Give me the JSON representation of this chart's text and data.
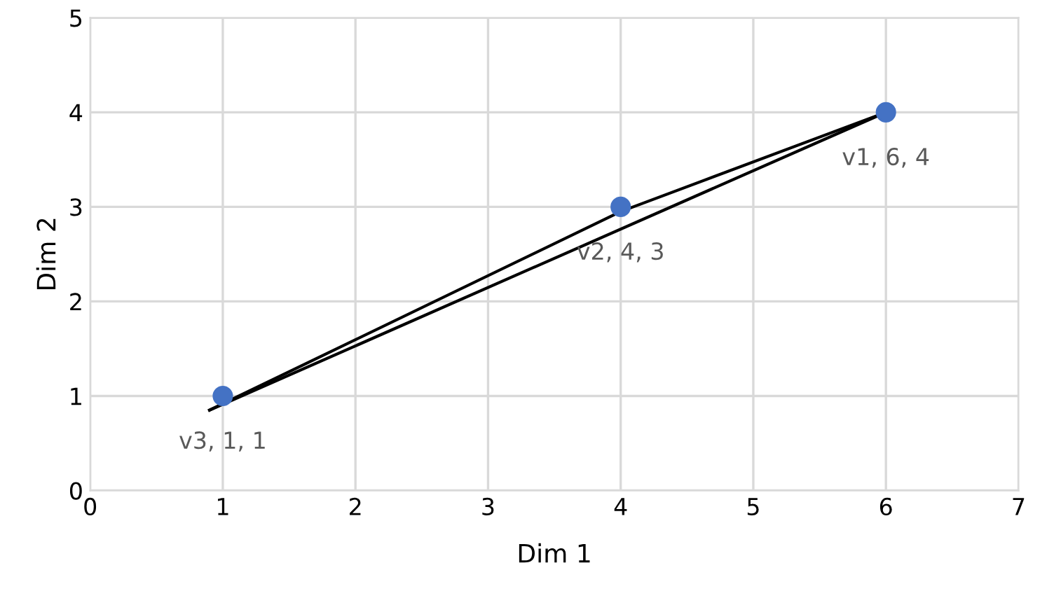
{
  "chart_data": {
    "type": "scatter",
    "xlabel": "Dim 1",
    "ylabel": "Dim 2",
    "xlim": [
      0,
      7
    ],
    "ylim": [
      0,
      5
    ],
    "xticks": [
      0,
      1,
      2,
      3,
      4,
      5,
      6,
      7
    ],
    "yticks": [
      0,
      1,
      2,
      3,
      4,
      5
    ],
    "grid": true,
    "marker": "circle",
    "series": [
      {
        "type": "line",
        "color": "#000000",
        "x": [
          0.9,
          4,
          6
        ],
        "values": [
          0.85,
          2.95,
          4
        ],
        "marker": "none"
      },
      {
        "type": "line",
        "color": "#000000",
        "x": [
          0.9,
          6
        ],
        "values": [
          0.85,
          4
        ],
        "marker": "none"
      },
      {
        "color": "#4472c4",
        "x": [
          6,
          4,
          1
        ],
        "values": [
          4,
          3,
          1
        ],
        "value_labels": [
          "v1, 6, 4",
          "v2, 4, 3",
          "v3, 1, 1"
        ]
      }
    ]
  }
}
